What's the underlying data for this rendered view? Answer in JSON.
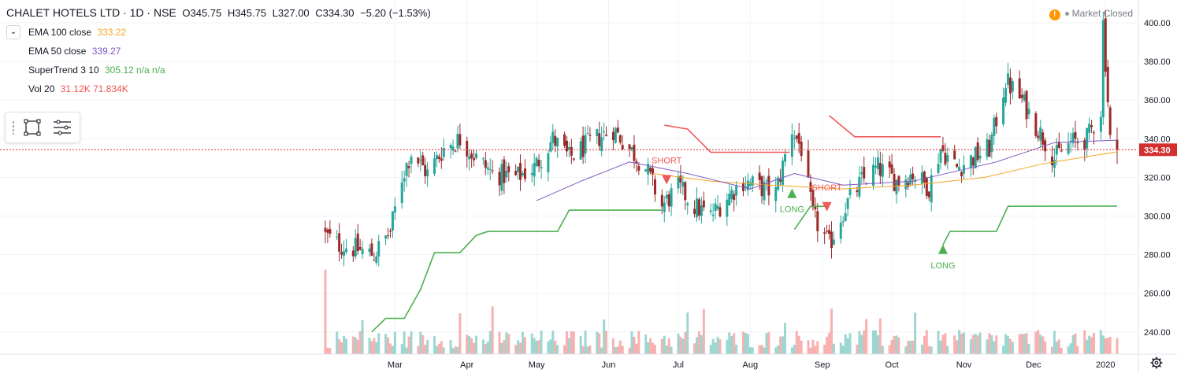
{
  "header": {
    "title": "CHALET HOTELS LTD · 1D · NSE",
    "open": "O345.75",
    "high": "H345.75",
    "low": "L327.00",
    "close": "C334.30",
    "change": "−5.20 (−1.53%)"
  },
  "indicators": [
    {
      "label": "EMA 100 close",
      "value": "333.22",
      "color": "#f5a623"
    },
    {
      "label": "EMA 50 close",
      "value": "339.27",
      "color": "#7e57c2"
    },
    {
      "label": "SuperTrend 3 10",
      "value": "305.12 n/a n/a",
      "color": "#4caf50"
    },
    {
      "label": "Vol 20",
      "value": "31.12K 71.834K",
      "color": "#ef5350"
    }
  ],
  "status": {
    "text": "Market Closed",
    "warning_symbol": "!"
  },
  "colors": {
    "up": "#26a69a",
    "down": "#9c2a2a",
    "supertrend_up": "#4caf50",
    "supertrend_down": "#f05a5a",
    "ema100": "#f5a623",
    "ema50": "#7e57c2",
    "last_price": "#d32f2f",
    "grid": "#f0f3fa"
  },
  "chart_data": {
    "type": "candlestick",
    "y_axis": {
      "min": 230,
      "max": 405,
      "ticks": [
        240,
        260,
        280,
        300,
        320,
        340,
        360,
        380,
        400
      ],
      "tick_labels": [
        "240.00",
        "260.00",
        "280.00",
        "300.00",
        "320.00",
        "340.00",
        "360.00",
        "380.00",
        "400.00"
      ]
    },
    "x_axis": {
      "start": "2019-01-29",
      "end": "2020-01-06",
      "labels": [
        {
          "date": "2019-03-01",
          "text": "Mar"
        },
        {
          "date": "2019-04-01",
          "text": "Apr"
        },
        {
          "date": "2019-05-01",
          "text": "May"
        },
        {
          "date": "2019-06-01",
          "text": "Jun"
        },
        {
          "date": "2019-07-01",
          "text": "Jul"
        },
        {
          "date": "2019-08-01",
          "text": "Aug"
        },
        {
          "date": "2019-09-01",
          "text": "Sep"
        },
        {
          "date": "2019-10-01",
          "text": "Oct"
        },
        {
          "date": "2019-11-01",
          "text": "Nov"
        },
        {
          "date": "2019-12-01",
          "text": "Dec"
        },
        {
          "date": "2020-01-01",
          "text": "2020"
        }
      ]
    },
    "last_price": {
      "value": 334.3,
      "label": "334.30"
    },
    "price_path": [
      {
        "date": "2019-01-30",
        "close": 290
      },
      {
        "date": "2019-02-05",
        "close": 285
      },
      {
        "date": "2019-02-12",
        "close": 283
      },
      {
        "date": "2019-02-20",
        "close": 280
      },
      {
        "date": "2019-02-27",
        "close": 292
      },
      {
        "date": "2019-03-04",
        "close": 320
      },
      {
        "date": "2019-03-08",
        "close": 333
      },
      {
        "date": "2019-03-15",
        "close": 322
      },
      {
        "date": "2019-03-22",
        "close": 335
      },
      {
        "date": "2019-03-29",
        "close": 340
      },
      {
        "date": "2019-04-05",
        "close": 330
      },
      {
        "date": "2019-04-12",
        "close": 322
      },
      {
        "date": "2019-04-22",
        "close": 320
      },
      {
        "date": "2019-04-30",
        "close": 325
      },
      {
        "date": "2019-05-08",
        "close": 340
      },
      {
        "date": "2019-05-15",
        "close": 330
      },
      {
        "date": "2019-05-24",
        "close": 338
      },
      {
        "date": "2019-06-03",
        "close": 345
      },
      {
        "date": "2019-06-10",
        "close": 335
      },
      {
        "date": "2019-06-17",
        "close": 325
      },
      {
        "date": "2019-06-24",
        "close": 305
      },
      {
        "date": "2019-07-01",
        "close": 315
      },
      {
        "date": "2019-07-08",
        "close": 305
      },
      {
        "date": "2019-07-15",
        "close": 300
      },
      {
        "date": "2019-07-22",
        "close": 310
      },
      {
        "date": "2019-07-29",
        "close": 318
      },
      {
        "date": "2019-08-05",
        "close": 315
      },
      {
        "date": "2019-08-12",
        "close": 312
      },
      {
        "date": "2019-08-19",
        "close": 345
      },
      {
        "date": "2019-08-23",
        "close": 335
      },
      {
        "date": "2019-08-28",
        "close": 300
      },
      {
        "date": "2019-09-04",
        "close": 285
      },
      {
        "date": "2019-09-11",
        "close": 305
      },
      {
        "date": "2019-09-18",
        "close": 318
      },
      {
        "date": "2019-09-25",
        "close": 325
      },
      {
        "date": "2019-10-03",
        "close": 318
      },
      {
        "date": "2019-10-10",
        "close": 322
      },
      {
        "date": "2019-10-17",
        "close": 315
      },
      {
        "date": "2019-10-22",
        "close": 335
      },
      {
        "date": "2019-10-29",
        "close": 325
      },
      {
        "date": "2019-11-05",
        "close": 330
      },
      {
        "date": "2019-11-12",
        "close": 335
      },
      {
        "date": "2019-11-19",
        "close": 370
      },
      {
        "date": "2019-11-26",
        "close": 360
      },
      {
        "date": "2019-12-03",
        "close": 345
      },
      {
        "date": "2019-12-10",
        "close": 330
      },
      {
        "date": "2019-12-17",
        "close": 338
      },
      {
        "date": "2019-12-24",
        "close": 340
      },
      {
        "date": "2019-12-30",
        "close": 355
      },
      {
        "date": "2019-12-31",
        "close": 400
      },
      {
        "date": "2020-01-03",
        "close": 340
      },
      {
        "date": "2020-01-06",
        "close": 334.3
      }
    ],
    "ema100": [
      {
        "date": "2019-06-20",
        "value": 322
      },
      {
        "date": "2019-07-15",
        "value": 318
      },
      {
        "date": "2019-08-10",
        "value": 316
      },
      {
        "date": "2019-09-10",
        "value": 314
      },
      {
        "date": "2019-10-10",
        "value": 316
      },
      {
        "date": "2019-11-10",
        "value": 320
      },
      {
        "date": "2019-12-05",
        "value": 327
      },
      {
        "date": "2020-01-06",
        "value": 333.22
      }
    ],
    "ema50": [
      {
        "date": "2019-05-01",
        "value": 308
      },
      {
        "date": "2019-05-20",
        "value": 318
      },
      {
        "date": "2019-06-10",
        "value": 328
      },
      {
        "date": "2019-07-05",
        "value": 322
      },
      {
        "date": "2019-08-01",
        "value": 314
      },
      {
        "date": "2019-08-20",
        "value": 322
      },
      {
        "date": "2019-09-10",
        "value": 316
      },
      {
        "date": "2019-10-10",
        "value": 318
      },
      {
        "date": "2019-11-15",
        "value": 328
      },
      {
        "date": "2019-12-10",
        "value": 338
      },
      {
        "date": "2020-01-06",
        "value": 339.27
      }
    ],
    "supertrend": [
      {
        "segment": "up",
        "points": [
          {
            "date": "2019-02-19",
            "value": 240
          },
          {
            "date": "2019-02-25",
            "value": 247
          },
          {
            "date": "2019-03-05",
            "value": 247
          },
          {
            "date": "2019-03-12",
            "value": 262
          },
          {
            "date": "2019-03-18",
            "value": 281
          },
          {
            "date": "2019-03-29",
            "value": 281
          },
          {
            "date": "2019-04-05",
            "value": 290
          },
          {
            "date": "2019-04-10",
            "value": 292
          },
          {
            "date": "2019-05-10",
            "value": 292
          },
          {
            "date": "2019-05-15",
            "value": 303
          },
          {
            "date": "2019-06-24",
            "value": 303
          }
        ]
      },
      {
        "segment": "down",
        "points": [
          {
            "date": "2019-06-25",
            "value": 347
          },
          {
            "date": "2019-07-05",
            "value": 345
          },
          {
            "date": "2019-07-15",
            "value": 333
          },
          {
            "date": "2019-08-18",
            "value": 333
          }
        ]
      },
      {
        "segment": "up",
        "points": [
          {
            "date": "2019-08-20",
            "value": 293
          },
          {
            "date": "2019-08-27",
            "value": 305
          },
          {
            "date": "2019-09-03",
            "value": 305
          }
        ]
      },
      {
        "segment": "down",
        "points": [
          {
            "date": "2019-09-04",
            "value": 352
          },
          {
            "date": "2019-09-07",
            "value": 349
          },
          {
            "date": "2019-09-15",
            "value": 341
          },
          {
            "date": "2019-10-22",
            "value": 341
          }
        ]
      },
      {
        "segment": "up",
        "points": [
          {
            "date": "2019-10-23",
            "value": 285
          },
          {
            "date": "2019-10-26",
            "value": 292
          },
          {
            "date": "2019-11-15",
            "value": 292
          },
          {
            "date": "2019-11-20",
            "value": 305
          },
          {
            "date": "2020-01-06",
            "value": 305.12
          }
        ]
      }
    ],
    "signals": [
      {
        "date": "2019-06-26",
        "type": "SHORT",
        "price": 320
      },
      {
        "date": "2019-08-19",
        "type": "LONG",
        "price": 313
      },
      {
        "date": "2019-09-03",
        "type": "SHORT",
        "price": 306
      },
      {
        "date": "2019-10-23",
        "type": "LONG",
        "price": 284
      }
    ],
    "volume_scale_max": 300000
  }
}
